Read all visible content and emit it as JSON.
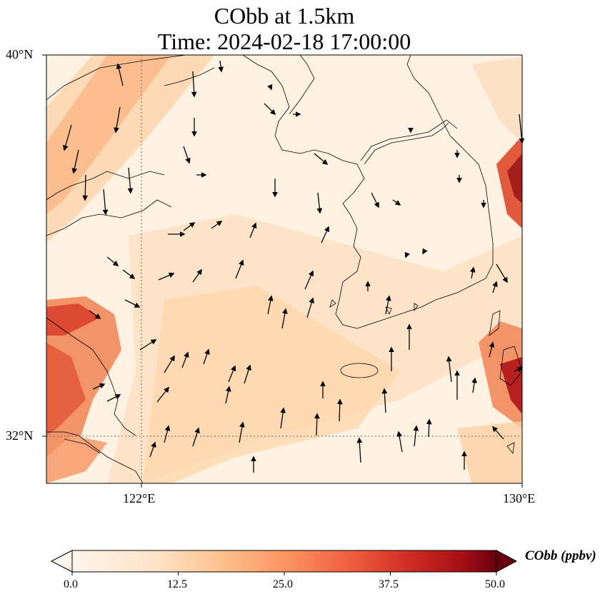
{
  "title_line1": "CObb at 1.5km",
  "title_line2": "Time: 2024-02-18 17:00:00",
  "map": {
    "lat_labels": [
      "40°N",
      "32°N"
    ],
    "lon_labels": [
      "122°E",
      "130°E"
    ],
    "lat_range": [
      31,
      40
    ],
    "lon_range": [
      120,
      130
    ],
    "gridlines": {
      "lat": 32,
      "lon": 122
    }
  },
  "colorbar": {
    "label": "CObb (ppbv)",
    "ticks": [
      "0.0",
      "12.5",
      "25.0",
      "37.5",
      "50.0"
    ],
    "range": [
      0,
      50
    ],
    "colors": [
      "#fff5eb",
      "#fdd9b4",
      "#fdae6b",
      "#f4734a",
      "#d73027",
      "#a50f15",
      "#67000d"
    ],
    "extend": "both"
  }
}
